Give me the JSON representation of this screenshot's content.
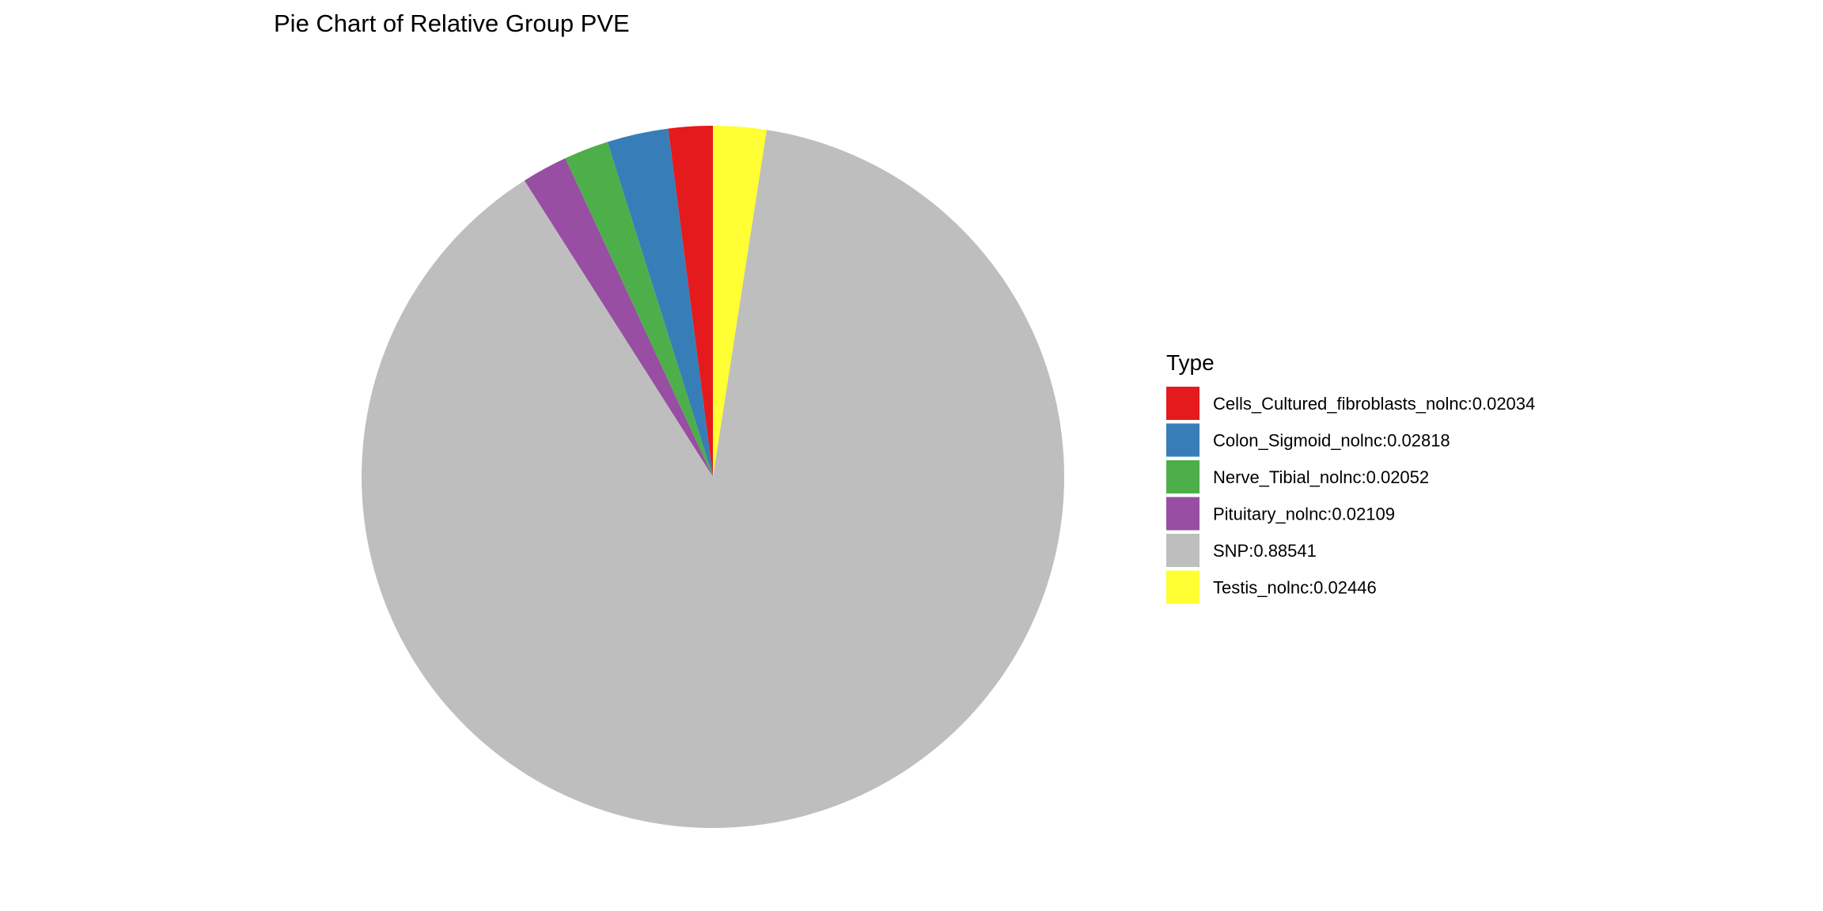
{
  "chart_data": {
    "type": "pie",
    "title": "Pie Chart of Relative Group PVE",
    "legend": {
      "title": "Type",
      "position": "right"
    },
    "slices": [
      {
        "name": "Cells_Cultured_fibroblasts_nolnc",
        "value": 0.02034,
        "color": "#E41A1C",
        "label": "Cells_Cultured_fibroblasts_nolnc:0.02034"
      },
      {
        "name": "Colon_Sigmoid_nolnc",
        "value": 0.02818,
        "color": "#377EB8",
        "label": "Colon_Sigmoid_nolnc:0.02818"
      },
      {
        "name": "Nerve_Tibial_nolnc",
        "value": 0.02052,
        "color": "#4DAF4A",
        "label": "Nerve_Tibial_nolnc:0.02052"
      },
      {
        "name": "Pituitary_nolnc",
        "value": 0.02109,
        "color": "#984EA3",
        "label": "Pituitary_nolnc:0.02109"
      },
      {
        "name": "SNP",
        "value": 0.88541,
        "color": "#BEBEBE",
        "label": "SNP:0.88541"
      },
      {
        "name": "Testis_nolnc",
        "value": 0.02446,
        "color": "#FFFF33",
        "label": "Testis_nolnc:0.02446"
      }
    ]
  }
}
